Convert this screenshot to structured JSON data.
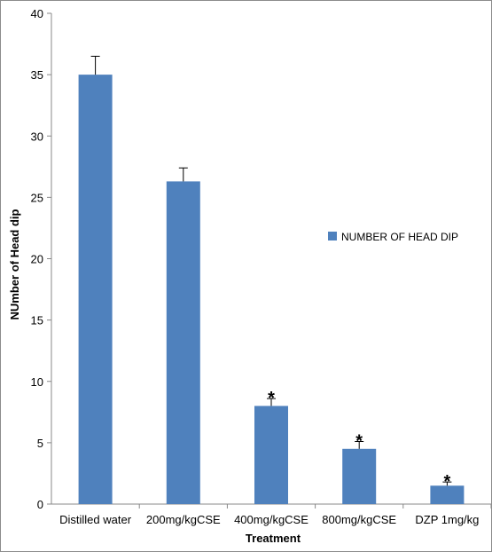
{
  "chart_data": {
    "type": "bar",
    "categories": [
      "Distilled water",
      "200mg/kgCSE",
      "400mg/kgCSE",
      "800mg/kgCSE",
      "DZP 1mg/kg"
    ],
    "series": [
      {
        "name": "NUMBER OF HEAD DIP",
        "values": [
          35.0,
          26.3,
          8.0,
          4.5,
          1.5
        ],
        "error": [
          1.5,
          1.1,
          0.6,
          0.6,
          0.3
        ],
        "color": "#4f81bd"
      }
    ],
    "annotations": [
      "",
      "",
      "*",
      "*",
      "*"
    ],
    "xlabel": "Treatment",
    "ylabel": "NUmber of Head dip",
    "ylim": [
      0,
      40
    ],
    "yticks": [
      0,
      5,
      10,
      15,
      20,
      25,
      30,
      35,
      40
    ],
    "grid": false,
    "legend_position": "right"
  }
}
